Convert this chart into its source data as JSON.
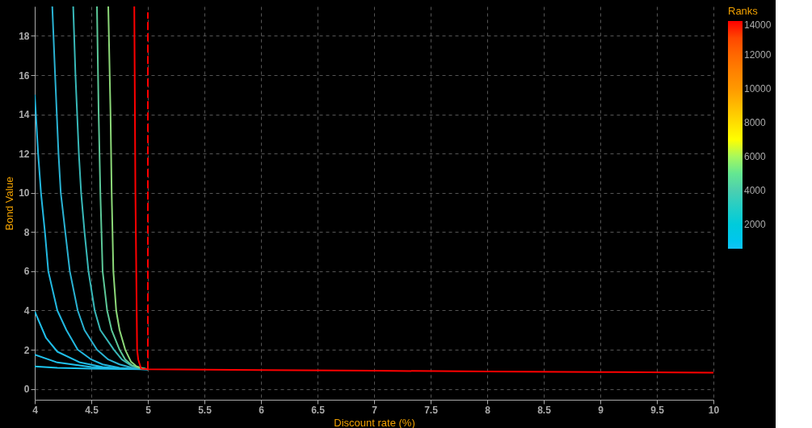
{
  "chart_data": {
    "type": "line",
    "xlabel": "Discount rate (%)",
    "ylabel": "Bond Value",
    "clabel": "Ranks",
    "xlim": [
      4,
      10
    ],
    "xticks": [
      4,
      4.5,
      5,
      5.5,
      6,
      6.5,
      7,
      7.5,
      8,
      8.5,
      9,
      9.5,
      10
    ],
    "ylim": [
      -0.55,
      19.5
    ],
    "yticks": [
      0,
      2,
      4,
      6,
      8,
      10,
      12,
      14,
      16,
      18
    ],
    "clim": [
      560,
      14000
    ],
    "cticks": [
      2000,
      4000,
      6000,
      8000,
      10000,
      12000,
      14000
    ],
    "grid": true,
    "marker": "none",
    "line_style": "solid",
    "series": [
      {
        "color": "#1cc6f2",
        "x": [
          4,
          4.2,
          4.5,
          4.8,
          5
        ],
        "values": [
          1.15,
          1.08,
          1.03,
          1.01,
          1.0
        ]
      },
      {
        "color": "#20c2ee",
        "x": [
          4,
          4.2,
          4.5,
          4.8,
          5
        ],
        "values": [
          1.75,
          1.35,
          1.12,
          1.02,
          1.0
        ]
      },
      {
        "color": "#20bee8",
        "x": [
          4,
          4.1,
          4.2,
          4.4,
          4.6,
          4.8,
          5
        ],
        "values": [
          3.95,
          2.6,
          1.9,
          1.35,
          1.12,
          1.03,
          1.0
        ]
      },
      {
        "color": "#22b8e0",
        "x": [
          4,
          4.03,
          4.055,
          4.09,
          4.12,
          4.2,
          4.28,
          4.38,
          4.5,
          4.6,
          4.75,
          4.9,
          5
        ],
        "values": [
          15,
          12,
          10,
          8,
          6,
          4,
          3,
          2,
          1.5,
          1.25,
          1.08,
          1.02,
          1.0
        ]
      },
      {
        "color": "#2ab2d2",
        "x": [
          4.155,
          4.18,
          4.21,
          4.23,
          4.27,
          4.31,
          4.38,
          4.44,
          4.55,
          4.65,
          4.75,
          4.85,
          5
        ],
        "values": [
          19.5,
          16,
          12,
          10,
          8,
          6,
          4,
          3,
          2,
          1.5,
          1.25,
          1.1,
          1.0
        ]
      },
      {
        "color": "#38b8b8",
        "x": [
          4.34,
          4.36,
          4.39,
          4.41,
          4.44,
          4.475,
          4.53,
          4.58,
          4.7,
          4.77,
          4.85,
          5
        ],
        "values": [
          19.5,
          16,
          12,
          10,
          8,
          6,
          4,
          3,
          2,
          1.5,
          1.2,
          1.0
        ]
      },
      {
        "color": "#5cc898",
        "x": [
          4.55,
          4.565,
          4.58,
          4.6,
          4.64,
          4.68,
          4.75,
          4.8,
          4.86,
          4.93,
          5
        ],
        "values": [
          19.5,
          14,
          10,
          6,
          4,
          3,
          2,
          1.5,
          1.2,
          1.05,
          1.0
        ]
      },
      {
        "color": "#8cd878",
        "x": [
          4.65,
          4.67,
          4.68,
          4.695,
          4.72,
          4.75,
          4.8,
          4.85,
          4.9,
          4.95,
          5
        ],
        "values": [
          19.5,
          14,
          10,
          6,
          4,
          3,
          2,
          1.4,
          1.15,
          1.05,
          1.0
        ]
      },
      {
        "color": "#ff0000",
        "x": [
          4.88,
          4.89,
          4.905,
          4.915,
          4.94,
          5,
          6,
          7,
          8,
          9,
          10
        ],
        "values": [
          19.5,
          10,
          2,
          1.5,
          1.03,
          1.0,
          0.96,
          0.93,
          0.89,
          0.86,
          0.83
        ]
      },
      {
        "color": "#ff0000",
        "line_style": "dashed",
        "x": [
          5,
          5
        ],
        "values": [
          1.0,
          19.2
        ]
      }
    ]
  }
}
